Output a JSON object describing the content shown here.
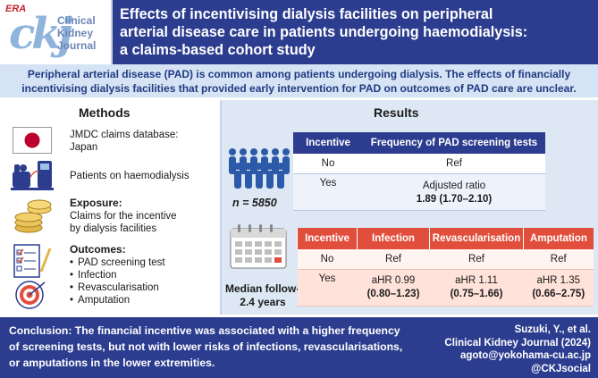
{
  "header": {
    "logo": {
      "era": "ERA",
      "mark": "ckj",
      "line1": "Clinical",
      "line2": "Kidney",
      "line3": "Journal"
    },
    "title_lines": [
      "Effects of incentivising dialysis facilities on peripheral",
      "arterial disease care in patients undergoing haemodialysis:",
      "a claims-based cohort study"
    ]
  },
  "intro": {
    "line1": "Peripheral arterial disease (PAD) is common among patients undergoing dialysis. The effects of financially",
    "line2": "incentivising dialysis facilities that provided early intervention for PAD on outcomes of PAD care are unclear."
  },
  "methods": {
    "heading": "Methods",
    "database": {
      "line1": "JMDC claims database:",
      "line2": "Japan"
    },
    "patients": "Patients on haemodialysis",
    "exposure": {
      "label": "Exposure:",
      "line1": "Claims for the incentive",
      "line2": "by dialysis facilities"
    },
    "outcomes": {
      "label": "Outcomes:",
      "items": [
        "PAD screening test",
        "Infection",
        "Revascularisation",
        "Amputation"
      ]
    }
  },
  "results": {
    "heading": "Results",
    "n_label": "n = 5850",
    "followup": {
      "line1": "Median follow-up",
      "line2": "2.4 years"
    },
    "table1": {
      "headers": [
        "Incentive",
        "Frequency of PAD screening tests"
      ],
      "row1": {
        "incentive": "No",
        "value": "Ref"
      },
      "row2": {
        "incentive": "Yes",
        "label": "Adjusted ratio",
        "value": "1.89 (1.70–2.10)"
      }
    },
    "table2": {
      "headers": [
        "Incentive",
        "Infection",
        "Revascularisation",
        "Amputation"
      ],
      "row1": {
        "incentive": "No",
        "values": [
          "Ref",
          "Ref",
          "Ref"
        ]
      },
      "row2": {
        "incentive": "Yes",
        "hr": [
          "aHR 0.99",
          "aHR 1.11",
          "aHR 1.35"
        ],
        "ci": [
          "(0.80–1.23)",
          "(0.75–1.66)",
          "(0.66–2.75)"
        ]
      }
    }
  },
  "footer": {
    "conclusion_lines": [
      "Conclusion: The financial incentive was associated with a higher frequency",
      "of screening tests, but not with lower risks of infections, revascularisations,",
      "or amputations in the lower extremities."
    ],
    "citation": {
      "authors": "Suzuki, Y., et al.",
      "journal": "Clinical Kidney Journal (2024)",
      "email": "agoto@yokohama-cu.ac.jp",
      "handle": "@CKJsocial"
    }
  },
  "colors": {
    "navy": "#2c3d8f",
    "light_blue": "#d6e3f4",
    "coral": "#e14f3c",
    "flag_red": "#bc002d"
  }
}
